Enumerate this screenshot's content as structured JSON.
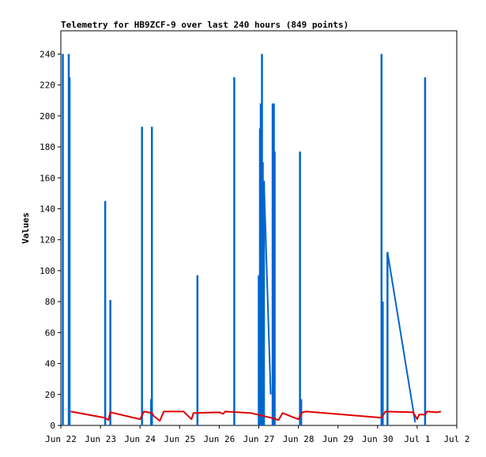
{
  "chart_data": {
    "type": "line",
    "title": "Telemetry for HB9ZCF-9 over last 240 hours (849 points)",
    "xlabel": "",
    "ylabel": "Values",
    "xlim": [
      0,
      10
    ],
    "ylim": [
      0,
      255
    ],
    "x_tick_labels": [
      "Jun 22",
      "Jun 23",
      "Jun 24",
      "Jun 25",
      "Jun 26",
      "Jun 27",
      "Jun 28",
      "Jun 29",
      "Jun 30",
      "Jul 1",
      "Jul 2"
    ],
    "y_ticks": [
      0,
      20,
      40,
      60,
      80,
      100,
      120,
      140,
      160,
      180,
      200,
      220,
      240
    ],
    "grid": false,
    "legend": "none",
    "colors": {
      "blue": "#0066cc",
      "red": "#dd0000",
      "frame": "#000000"
    },
    "series": [
      {
        "color": "blue",
        "style": "spikes",
        "points": [
          [
            0.05,
            240
          ],
          [
            0.2,
            240
          ],
          [
            0.22,
            225
          ],
          [
            1.12,
            145
          ],
          [
            1.25,
            81
          ],
          [
            2.05,
            193
          ],
          [
            2.28,
            17
          ],
          [
            2.3,
            193
          ],
          [
            3.45,
            97
          ],
          [
            4.38,
            225
          ],
          [
            5.0,
            97
          ],
          [
            5.03,
            192
          ],
          [
            5.05,
            208
          ],
          [
            5.08,
            240
          ],
          [
            5.1,
            170
          ],
          [
            5.13,
            158
          ],
          [
            5.35,
            208
          ],
          [
            5.38,
            208
          ],
          [
            5.4,
            177
          ],
          [
            6.04,
            177
          ],
          [
            6.07,
            17
          ],
          [
            8.1,
            240
          ],
          [
            8.13,
            80
          ],
          [
            8.25,
            112
          ],
          [
            9.2,
            225
          ]
        ],
        "connecting_lines": [
          [
            [
              5.13,
              158
            ],
            [
              5.3,
              20
            ]
          ],
          [
            [
              8.25,
              112
            ],
            [
              8.95,
              2
            ]
          ]
        ]
      },
      {
        "color": "red",
        "style": "line",
        "points": [
          [
            0.25,
            9
          ],
          [
            1.1,
            5
          ],
          [
            1.2,
            3.5
          ],
          [
            1.25,
            8.5
          ],
          [
            2.0,
            4
          ],
          [
            2.1,
            9
          ],
          [
            2.3,
            8
          ],
          [
            2.35,
            6
          ],
          [
            2.5,
            3
          ],
          [
            2.6,
            9
          ],
          [
            3.1,
            9
          ],
          [
            3.3,
            4
          ],
          [
            3.35,
            8
          ],
          [
            4.0,
            8.5
          ],
          [
            4.1,
            7.5
          ],
          [
            4.15,
            9
          ],
          [
            4.8,
            8
          ],
          [
            5.3,
            5
          ],
          [
            5.5,
            3.5
          ],
          [
            5.6,
            8
          ],
          [
            6.0,
            4
          ],
          [
            6.1,
            8.5
          ],
          [
            6.2,
            9
          ],
          [
            8.1,
            5
          ],
          [
            8.2,
            9
          ],
          [
            8.9,
            8.5
          ],
          [
            9.0,
            4
          ],
          [
            9.05,
            7
          ],
          [
            9.2,
            7
          ],
          [
            9.25,
            9
          ],
          [
            9.5,
            8.5
          ],
          [
            9.6,
            9
          ]
        ]
      }
    ]
  }
}
